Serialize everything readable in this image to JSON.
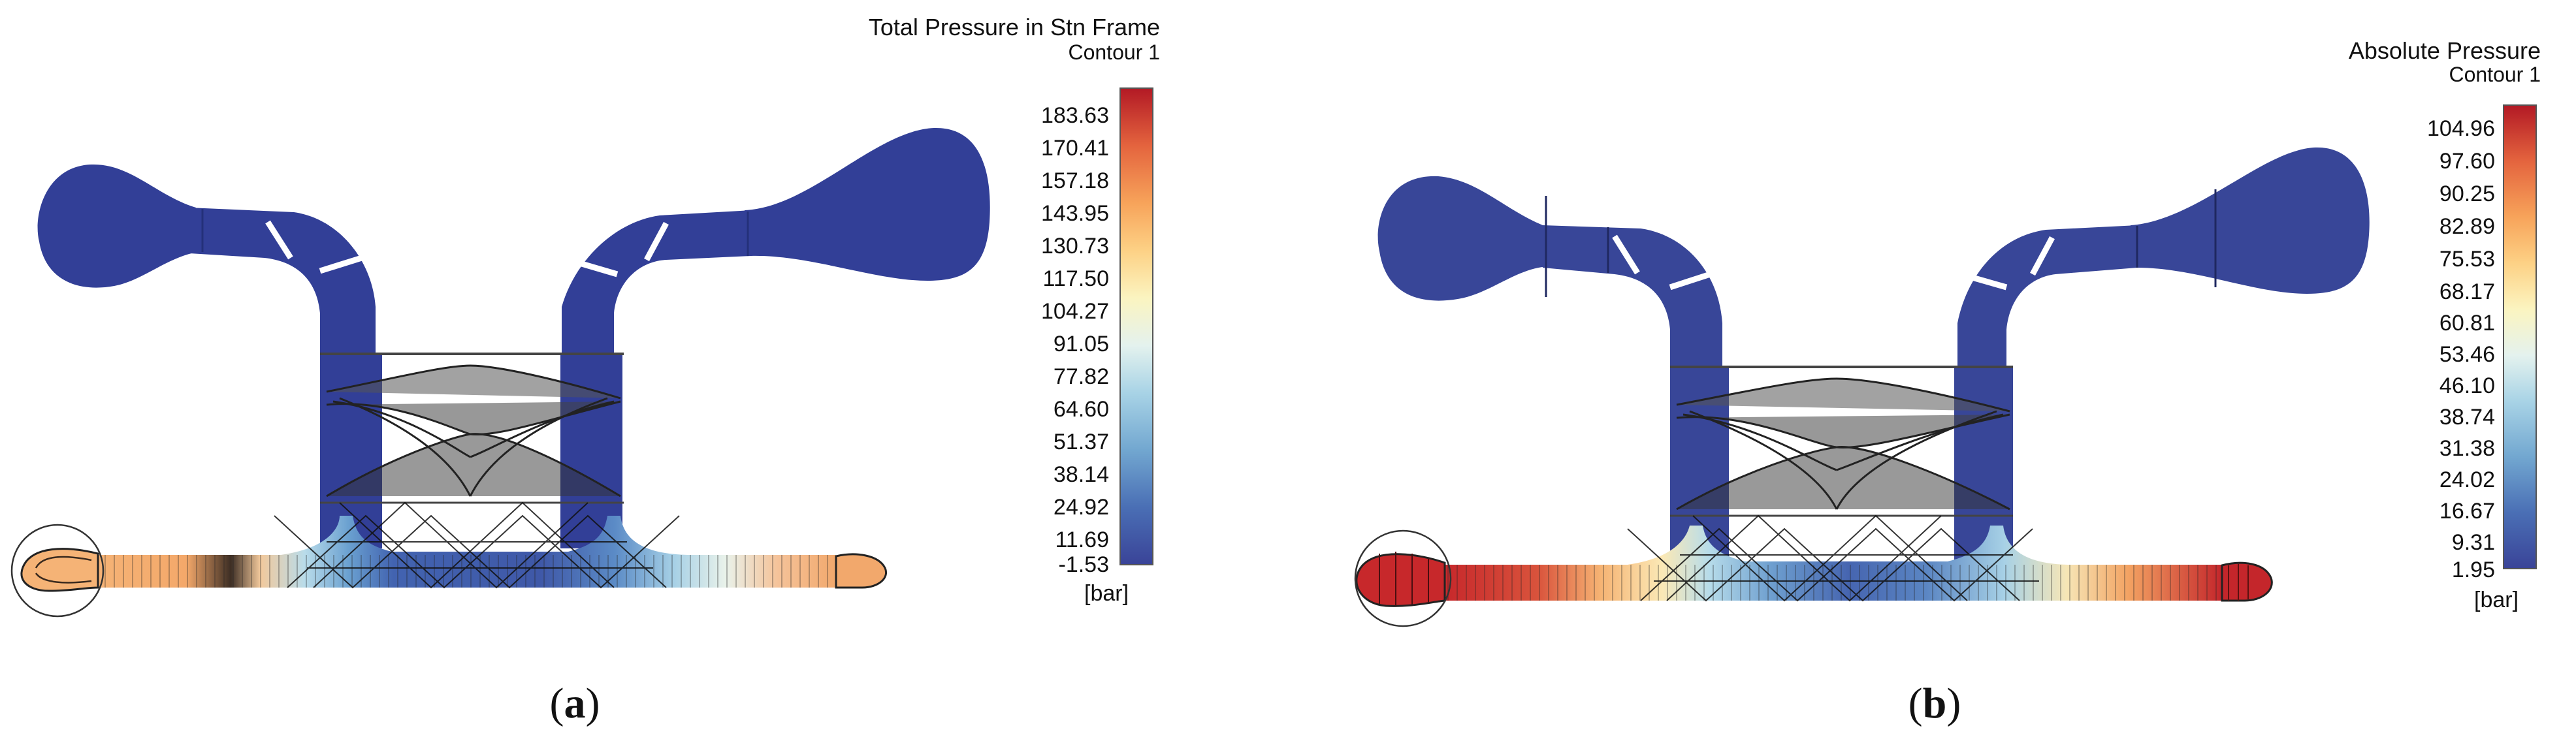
{
  "panel_a": {
    "legend_title": "Total Pressure in Stn Frame",
    "legend_subtitle": "Contour 1",
    "unit": "[bar]",
    "ticks": [
      "183.63",
      "170.41",
      "157.18",
      "143.95",
      "130.73",
      "117.50",
      "104.27",
      "91.05",
      "77.82",
      "64.60",
      "51.37",
      "38.14",
      "24.92",
      "11.69",
      "-1.53"
    ],
    "caption_open": "(",
    "caption_letter": "a",
    "caption_close": ")",
    "colors": {
      "body": "#323f97",
      "inlet_low": "#f5b376"
    }
  },
  "panel_b": {
    "legend_title": "Absolute Pressure",
    "legend_subtitle": "Contour 1",
    "unit": "[bar]",
    "ticks": [
      "104.96",
      "97.60",
      "90.25",
      "82.89",
      "75.53",
      "68.17",
      "60.81",
      "53.46",
      "46.10",
      "38.74",
      "31.38",
      "24.02",
      "16.67",
      "9.31",
      "1.95"
    ],
    "caption_open": "(",
    "caption_letter": "b",
    "caption_close": ")",
    "colors": {
      "body": "#384698",
      "inlet_low": "#c82a2a"
    }
  }
}
